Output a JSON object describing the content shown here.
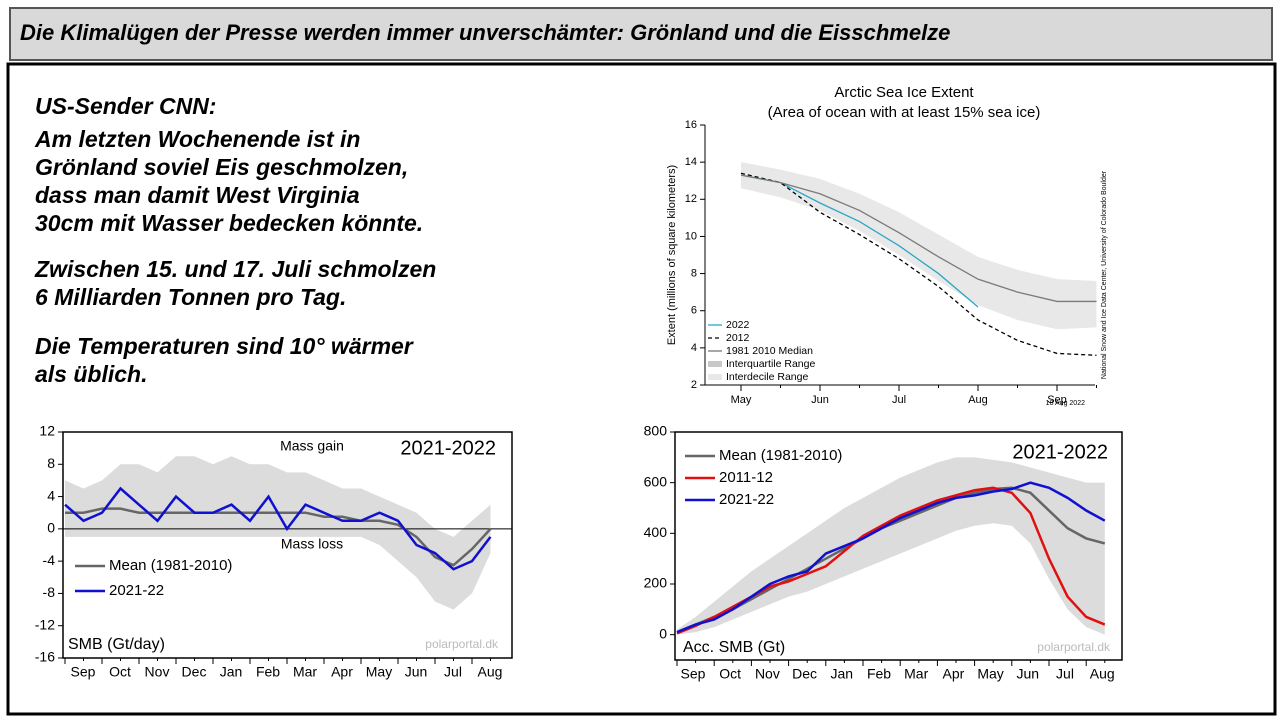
{
  "header": {
    "title": "Die Klimalügen der Presse werden immer unverschämter: Grönland und die Eisschmelze"
  },
  "text": {
    "paragraphs": [
      [
        "US-Sender CNN:",
        "Am letzten Wochenende ist in",
        "Grönland soviel Eis geschmolzen,",
        "dass man damit West Virginia",
        "30cm mit Wasser bedecken könnte."
      ],
      [
        "Zwischen 15. und 17. Juli  schmolzen",
        "6 Milliarden Tonnen pro Tag."
      ],
      [
        "Die Temperaturen sind 10° wärmer",
        "als üblich."
      ]
    ]
  },
  "chart_data": [
    {
      "type": "line",
      "title": "Arctic Sea Ice Extent",
      "subtitle": "(Area of ocean with at least 15% sea ice)",
      "y_label": "Extent (millions of square kilometers)",
      "categories": [
        "May",
        null,
        "Jun",
        null,
        "Jul",
        null,
        "Aug",
        null,
        "Sep",
        null
      ],
      "ylim": [
        2,
        16
      ],
      "yticks": [
        2,
        4,
        6,
        8,
        10,
        12,
        14,
        16
      ],
      "series": [
        {
          "name": "2022",
          "color": "#2aa7c6",
          "values": [
            13.3,
            12.9,
            11.8,
            10.8,
            9.5,
            8.0,
            6.2,
            null,
            null,
            null
          ]
        },
        {
          "name": "2012",
          "color": "#000000",
          "dashed": true,
          "values": [
            13.4,
            12.9,
            11.3,
            10.1,
            8.8,
            7.3,
            5.5,
            4.4,
            3.7,
            3.6
          ]
        },
        {
          "name": "1981 2010 Median",
          "color": "#7a7a7a",
          "values": [
            13.3,
            12.9,
            12.3,
            11.4,
            10.2,
            8.9,
            7.7,
            7.0,
            6.5,
            6.5
          ]
        },
        {
          "name": "Interquartile Range",
          "color": "#c8c8c8",
          "lower": [
            12.9,
            12.5,
            11.9,
            10.9,
            9.6,
            8.3,
            7.1,
            6.4,
            5.9,
            6.0
          ],
          "upper": [
            13.7,
            13.3,
            12.7,
            11.9,
            10.8,
            9.5,
            8.3,
            7.6,
            7.1,
            7.0
          ]
        },
        {
          "name": "Interdecile Range",
          "color": "#e8e8e8",
          "lower": [
            12.6,
            12.1,
            11.4,
            10.3,
            9.0,
            7.6,
            6.3,
            5.5,
            5.0,
            5.1
          ],
          "upper": [
            14.0,
            13.6,
            13.1,
            12.3,
            11.3,
            10.1,
            8.9,
            8.2,
            7.7,
            7.6
          ]
        }
      ],
      "annotations": [
        "18 Aug 2022",
        "National Snow and Ice Data Center, University of Colorado Boulder"
      ]
    },
    {
      "type": "line",
      "categories": [
        "Sep",
        null,
        "Oct",
        null,
        "Nov",
        null,
        "Dec",
        null,
        "Jan",
        null,
        "Feb",
        null,
        "Mar",
        null,
        "Apr",
        null,
        "May",
        null,
        "Jun",
        null,
        "Jul",
        null,
        "Aug",
        null
      ],
      "ylim": [
        -16,
        12
      ],
      "yticks": [
        -16,
        -12,
        -8,
        -4,
        0,
        4,
        8,
        12
      ],
      "range": {
        "color": "#dcdcdc",
        "lower": [
          -1,
          -1,
          -1,
          -1,
          -1,
          -1,
          -1,
          -1,
          -1,
          -1,
          -1,
          -1,
          -1,
          -1,
          -1,
          -1,
          -1,
          -2,
          -4,
          -6,
          -9,
          -10,
          -8,
          -3
        ],
        "upper": [
          6,
          5,
          6,
          8,
          8,
          7,
          9,
          9,
          8,
          9,
          8,
          8,
          7,
          7,
          6,
          5,
          5,
          4,
          3,
          2,
          0,
          -1,
          1,
          3
        ]
      },
      "series": [
        {
          "name": "Mean (1981-2010)",
          "color": "#666666",
          "values": [
            2,
            2,
            2.5,
            2.5,
            2,
            2,
            2,
            2,
            2,
            2,
            2,
            2,
            2,
            2,
            1.5,
            1.5,
            1,
            1,
            0.5,
            -1,
            -3.5,
            -4.5,
            -2.5,
            0
          ]
        },
        {
          "name": "2021-22",
          "color": "#1010d0",
          "values": [
            3,
            1,
            2,
            5,
            3,
            1,
            4,
            2,
            2,
            3,
            1,
            4,
            0,
            3,
            2,
            1,
            1,
            2,
            1,
            -2,
            -3,
            -5,
            -4,
            -1
          ]
        }
      ],
      "annotations": [
        "Mass gain",
        "Mass loss",
        "2021-2022",
        "SMB (Gt/day)",
        "polarportal.dk"
      ]
    },
    {
      "type": "line",
      "categories": [
        "Sep",
        null,
        "Oct",
        null,
        "Nov",
        null,
        "Dec",
        null,
        "Jan",
        null,
        "Feb",
        null,
        "Mar",
        null,
        "Apr",
        null,
        "May",
        null,
        "Jun",
        null,
        "Jul",
        null,
        "Aug",
        null
      ],
      "ylim": [
        -100,
        800
      ],
      "yticks": [
        0,
        200,
        400,
        600,
        800
      ],
      "range": {
        "color": "#dcdcdc",
        "lower": [
          0,
          10,
          30,
          60,
          90,
          120,
          150,
          170,
          200,
          230,
          260,
          290,
          320,
          350,
          380,
          410,
          430,
          440,
          430,
          360,
          220,
          100,
          30,
          0
        ],
        "upper": [
          20,
          70,
          130,
          190,
          250,
          300,
          350,
          400,
          450,
          500,
          540,
          580,
          620,
          650,
          680,
          700,
          700,
          690,
          680,
          660,
          640,
          620,
          600,
          600
        ]
      },
      "series": [
        {
          "name": "Mean (1981-2010)",
          "color": "#666666",
          "values": [
            10,
            40,
            70,
            100,
            140,
            180,
            220,
            260,
            300,
            340,
            380,
            420,
            450,
            480,
            510,
            540,
            560,
            575,
            580,
            560,
            490,
            420,
            380,
            360
          ]
        },
        {
          "name": "2011-12",
          "color": "#e01010",
          "values": [
            5,
            35,
            70,
            110,
            150,
            190,
            210,
            240,
            270,
            330,
            390,
            430,
            470,
            500,
            530,
            550,
            570,
            580,
            560,
            480,
            300,
            150,
            70,
            40
          ]
        },
        {
          "name": "2021-22",
          "color": "#1010d0",
          "values": [
            10,
            40,
            60,
            100,
            150,
            200,
            230,
            250,
            320,
            350,
            380,
            420,
            460,
            490,
            520,
            540,
            550,
            565,
            575,
            600,
            580,
            540,
            490,
            450
          ]
        }
      ],
      "annotations": [
        "2021-2022",
        "Acc. SMB (Gt)",
        "polarportal.dk"
      ]
    }
  ]
}
